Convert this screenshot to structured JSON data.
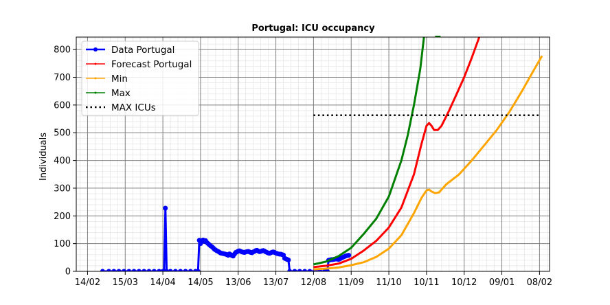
{
  "chart_data": {
    "type": "line",
    "title": "Portugal: ICU occupancy",
    "xlabel": "",
    "ylabel": "Individuals",
    "x_axis": {
      "unit": "date (day/month, 2020-2021)",
      "range": [
        "2020-02-05",
        "2021-02-16"
      ],
      "ticks": [
        {
          "date": "2020-02-14",
          "label": "14/02"
        },
        {
          "date": "2020-03-15",
          "label": "15/03"
        },
        {
          "date": "2020-04-14",
          "label": "14/04"
        },
        {
          "date": "2020-05-14",
          "label": "14/05"
        },
        {
          "date": "2020-06-13",
          "label": "13/06"
        },
        {
          "date": "2020-07-13",
          "label": "13/07"
        },
        {
          "date": "2020-08-12",
          "label": "12/08"
        },
        {
          "date": "2020-09-11",
          "label": "11/09"
        },
        {
          "date": "2020-10-11",
          "label": "11/10"
        },
        {
          "date": "2020-11-10",
          "label": "10/11"
        },
        {
          "date": "2020-12-10",
          "label": "10/12"
        },
        {
          "date": "2021-01-09",
          "label": "09/01"
        },
        {
          "date": "2021-02-08",
          "label": "08/02"
        }
      ]
    },
    "y_axis": {
      "range": [
        0,
        845
      ],
      "ticks": [
        0,
        100,
        200,
        300,
        400,
        500,
        600,
        700,
        800
      ]
    },
    "grid": true,
    "minor_grid": true,
    "legend_position": "top-left",
    "series": [
      {
        "name": "Data Portugal",
        "color": "#0000ff",
        "style": "line-with-circle-markers",
        "points": [
          [
            "2020-02-26",
            0
          ],
          [
            "2020-03-02",
            0
          ],
          [
            "2020-03-06",
            0
          ],
          [
            "2020-03-10",
            0
          ],
          [
            "2020-03-14",
            0
          ],
          [
            "2020-03-18",
            0
          ],
          [
            "2020-03-22",
            0
          ],
          [
            "2020-03-26",
            0
          ],
          [
            "2020-03-30",
            0
          ],
          [
            "2020-04-03",
            0
          ],
          [
            "2020-04-07",
            0
          ],
          [
            "2020-04-11",
            0
          ],
          [
            "2020-04-14",
            0
          ],
          [
            "2020-04-15",
            0
          ],
          [
            "2020-04-16",
            228
          ],
          [
            "2020-04-17",
            0
          ],
          [
            "2020-04-20",
            0
          ],
          [
            "2020-04-24",
            0
          ],
          [
            "2020-04-28",
            0
          ],
          [
            "2020-05-02",
            0
          ],
          [
            "2020-05-06",
            0
          ],
          [
            "2020-05-10",
            0
          ],
          [
            "2020-05-12",
            0
          ],
          [
            "2020-05-13",
            112
          ],
          [
            "2020-05-14",
            100
          ],
          [
            "2020-05-15",
            110
          ],
          [
            "2020-05-16",
            113
          ],
          [
            "2020-05-17",
            108
          ],
          [
            "2020-05-18",
            111
          ],
          [
            "2020-05-19",
            104
          ],
          [
            "2020-05-20",
            100
          ],
          [
            "2020-05-21",
            96
          ],
          [
            "2020-05-22",
            92
          ],
          [
            "2020-05-23",
            89
          ],
          [
            "2020-05-24",
            85
          ],
          [
            "2020-05-25",
            80
          ],
          [
            "2020-05-26",
            77
          ],
          [
            "2020-05-27",
            74
          ],
          [
            "2020-05-28",
            72
          ],
          [
            "2020-05-29",
            69
          ],
          [
            "2020-05-30",
            66
          ],
          [
            "2020-05-31",
            65
          ],
          [
            "2020-06-01",
            64
          ],
          [
            "2020-06-02",
            63
          ],
          [
            "2020-06-03",
            62
          ],
          [
            "2020-06-04",
            60
          ],
          [
            "2020-06-05",
            58
          ],
          [
            "2020-06-06",
            63
          ],
          [
            "2020-06-07",
            60
          ],
          [
            "2020-06-08",
            57
          ],
          [
            "2020-06-09",
            55
          ],
          [
            "2020-06-10",
            62
          ],
          [
            "2020-06-11",
            68
          ],
          [
            "2020-06-12",
            70
          ],
          [
            "2020-06-13",
            73
          ],
          [
            "2020-06-14",
            74
          ],
          [
            "2020-06-15",
            72
          ],
          [
            "2020-06-16",
            70
          ],
          [
            "2020-06-17",
            69
          ],
          [
            "2020-06-18",
            68
          ],
          [
            "2020-06-19",
            70
          ],
          [
            "2020-06-20",
            71
          ],
          [
            "2020-06-21",
            72
          ],
          [
            "2020-06-22",
            70
          ],
          [
            "2020-06-23",
            68
          ],
          [
            "2020-06-24",
            67
          ],
          [
            "2020-06-25",
            70
          ],
          [
            "2020-06-26",
            72
          ],
          [
            "2020-06-27",
            75
          ],
          [
            "2020-06-28",
            76
          ],
          [
            "2020-06-29",
            73
          ],
          [
            "2020-06-30",
            71
          ],
          [
            "2020-07-01",
            72
          ],
          [
            "2020-07-02",
            74
          ],
          [
            "2020-07-03",
            75
          ],
          [
            "2020-07-04",
            73
          ],
          [
            "2020-07-05",
            70
          ],
          [
            "2020-07-06",
            68
          ],
          [
            "2020-07-07",
            66
          ],
          [
            "2020-07-08",
            65
          ],
          [
            "2020-07-09",
            67
          ],
          [
            "2020-07-10",
            69
          ],
          [
            "2020-07-11",
            70
          ],
          [
            "2020-07-12",
            68
          ],
          [
            "2020-07-13",
            66
          ],
          [
            "2020-07-14",
            64
          ],
          [
            "2020-07-15",
            63
          ],
          [
            "2020-07-16",
            62
          ],
          [
            "2020-07-17",
            62
          ],
          [
            "2020-07-18",
            60
          ],
          [
            "2020-07-19",
            59
          ],
          [
            "2020-07-20",
            47
          ],
          [
            "2020-07-21",
            45
          ],
          [
            "2020-07-22",
            43
          ],
          [
            "2020-07-23",
            41
          ],
          [
            "2020-07-24",
            0
          ],
          [
            "2020-07-28",
            0
          ],
          [
            "2020-08-01",
            0
          ],
          [
            "2020-08-05",
            0
          ],
          [
            "2020-08-09",
            0
          ],
          [
            "2020-08-13",
            0
          ],
          [
            "2020-08-17",
            0
          ],
          [
            "2020-08-21",
            0
          ],
          [
            "2020-08-23",
            0
          ],
          [
            "2020-08-24",
            40
          ],
          [
            "2020-08-25",
            41
          ],
          [
            "2020-08-26",
            42
          ],
          [
            "2020-08-27",
            42
          ],
          [
            "2020-08-28",
            43
          ],
          [
            "2020-08-29",
            44
          ],
          [
            "2020-08-30",
            45
          ],
          [
            "2020-08-31",
            44
          ],
          [
            "2020-09-01",
            43
          ],
          [
            "2020-09-02",
            45
          ],
          [
            "2020-09-03",
            48
          ],
          [
            "2020-09-04",
            50
          ],
          [
            "2020-09-05",
            52
          ],
          [
            "2020-09-06",
            54
          ],
          [
            "2020-09-07",
            56
          ],
          [
            "2020-09-08",
            57
          ],
          [
            "2020-09-09",
            58
          ]
        ]
      },
      {
        "name": "Forecast Portugal",
        "color": "#ff0000",
        "style": "line",
        "points": [
          [
            "2020-08-12",
            15
          ],
          [
            "2020-08-22",
            20
          ],
          [
            "2020-09-01",
            28
          ],
          [
            "2020-09-11",
            45
          ],
          [
            "2020-09-21",
            75
          ],
          [
            "2020-10-01",
            110
          ],
          [
            "2020-10-11",
            158
          ],
          [
            "2020-10-21",
            230
          ],
          [
            "2020-10-31",
            350
          ],
          [
            "2020-11-06",
            460
          ],
          [
            "2020-11-10",
            525
          ],
          [
            "2020-11-12",
            535
          ],
          [
            "2020-11-14",
            525
          ],
          [
            "2020-11-16",
            510
          ],
          [
            "2020-11-19",
            510
          ],
          [
            "2020-11-22",
            525
          ],
          [
            "2020-11-28",
            580
          ],
          [
            "2020-12-04",
            640
          ],
          [
            "2020-12-10",
            700
          ],
          [
            "2020-12-16",
            770
          ],
          [
            "2020-12-22",
            845
          ]
        ]
      },
      {
        "name": "Min",
        "color": "#ffa500",
        "style": "line",
        "points": [
          [
            "2020-08-12",
            7
          ],
          [
            "2020-08-22",
            10
          ],
          [
            "2020-09-01",
            14
          ],
          [
            "2020-09-11",
            22
          ],
          [
            "2020-09-21",
            33
          ],
          [
            "2020-10-01",
            52
          ],
          [
            "2020-10-11",
            82
          ],
          [
            "2020-10-21",
            130
          ],
          [
            "2020-10-31",
            210
          ],
          [
            "2020-11-06",
            265
          ],
          [
            "2020-11-10",
            292
          ],
          [
            "2020-11-12",
            295
          ],
          [
            "2020-11-14",
            288
          ],
          [
            "2020-11-17",
            282
          ],
          [
            "2020-11-20",
            285
          ],
          [
            "2020-11-26",
            315
          ],
          [
            "2020-12-06",
            350
          ],
          [
            "2020-12-16",
            400
          ],
          [
            "2020-12-26",
            455
          ],
          [
            "2021-01-05",
            510
          ],
          [
            "2021-01-15",
            575
          ],
          [
            "2021-01-25",
            650
          ],
          [
            "2021-02-04",
            730
          ],
          [
            "2021-02-10",
            777
          ]
        ]
      },
      {
        "name": "Max",
        "color": "#008000",
        "style": "line",
        "points": [
          [
            "2020-08-12",
            25
          ],
          [
            "2020-08-22",
            35
          ],
          [
            "2020-09-01",
            55
          ],
          [
            "2020-09-11",
            85
          ],
          [
            "2020-09-21",
            135
          ],
          [
            "2020-10-01",
            190
          ],
          [
            "2020-10-11",
            270
          ],
          [
            "2020-10-21",
            400
          ],
          [
            "2020-10-26",
            490
          ],
          [
            "2020-10-31",
            600
          ],
          [
            "2020-11-05",
            730
          ],
          [
            "2020-11-08",
            845
          ]
        ]
      },
      {
        "name": "MAX ICUs",
        "color": "#000000",
        "style": "dotted",
        "points": [
          [
            "2020-08-12",
            563
          ],
          [
            "2021-02-08",
            563
          ]
        ]
      }
    ],
    "annotations": [
      {
        "text": "",
        "date": "2020-11-19",
        "value": 845,
        "color": "#008000"
      }
    ]
  }
}
